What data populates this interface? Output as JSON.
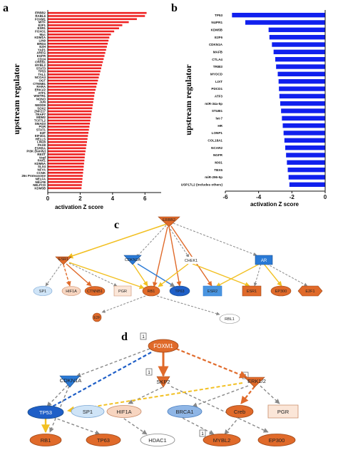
{
  "panels": {
    "a": {
      "label": "a"
    },
    "b": {
      "label": "b"
    },
    "c": {
      "label": "c"
    },
    "d": {
      "label": "d"
    }
  },
  "chart_data": [
    {
      "type": "bar",
      "orientation": "horizontal",
      "color": "#ee2222",
      "ylabel": "upstream regulator",
      "xlabel": "activation Z score",
      "xlim": [
        0,
        7
      ],
      "xticks": [
        0,
        2,
        4,
        6
      ],
      "categories": [
        "ERBB2",
        "RABL6",
        "FOXM1",
        "MITF",
        "E2F1",
        "ESR1",
        "FOXO1",
        "Myc",
        "KDM1A",
        "LIN9",
        "BRD4",
        "EZH",
        "YAP1",
        "AREG",
        "EGFR",
        "CD24",
        "CREB1",
        "MYBL2",
        "STAT3",
        "TP53",
        "TAL1",
        "NCOA3",
        "OGT",
        "CTNNB1",
        "RARA",
        "ERK1/2",
        "ATF1",
        "WWTR1",
        "NONO",
        "JUN",
        "NEDD9",
        "SOX2",
        "ZNF217",
        "TRAP7",
        "MDM2",
        "TCF7L2",
        "SMAD3",
        "PGR",
        "STAT1",
        "E2F",
        "EIF4G1",
        "HELLS",
        "LIN28",
        "PAX8",
        "ESRRA",
        "PI3K (family)",
        "REST",
        "Vegf",
        "PAK1",
        "KDM5A",
        "SLX4",
        "NFYA",
        "CCNK",
        "26s Proteasome",
        "NELFA",
        "NELFB",
        "NELFCD",
        "KDM5B"
      ],
      "values": [
        6.1,
        6.0,
        5.5,
        5.0,
        4.6,
        4.4,
        4.1,
        3.9,
        3.8,
        3.75,
        3.7,
        3.65,
        3.6,
        3.55,
        3.5,
        3.45,
        3.4,
        3.35,
        3.3,
        3.25,
        3.2,
        3.15,
        3.1,
        3.05,
        3.0,
        2.95,
        2.9,
        2.87,
        2.84,
        2.81,
        2.78,
        2.75,
        2.72,
        2.69,
        2.66,
        2.63,
        2.6,
        2.57,
        2.54,
        2.51,
        2.48,
        2.45,
        2.42,
        2.39,
        2.36,
        2.33,
        2.3,
        2.28,
        2.26,
        2.24,
        2.22,
        2.2,
        2.18,
        2.16,
        2.14,
        2.12,
        2.1,
        2.08
      ]
    },
    {
      "type": "bar",
      "orientation": "horizontal",
      "color": "#1020ee",
      "ylabel": "upstream regulator",
      "xlabel": "activation Z score",
      "xlim": [
        -6,
        0
      ],
      "xticks": [
        -6,
        -4,
        -2,
        0
      ],
      "categories": [
        "TP53",
        "NUPR1",
        "KDM5B",
        "E2F6",
        "CDKN1A",
        "MAFB",
        "CTLA4",
        "TRIB3",
        "MYOCD",
        "LIXT",
        "PDCD1",
        "ATF3",
        "miR-34a-5p",
        "STUB1",
        "let-7",
        "HR",
        "LONP1",
        "COL18A1",
        "NCAR2",
        "NGFR",
        "MXI1",
        "TBX5",
        "miR-296-5p",
        "USP17L2 (includes others)"
      ],
      "values": [
        -5.6,
        -4.8,
        -3.4,
        -3.35,
        -3.2,
        -3.1,
        -3.0,
        -2.95,
        -2.85,
        -2.8,
        -2.78,
        -2.75,
        -2.7,
        -2.65,
        -2.6,
        -2.55,
        -2.5,
        -2.45,
        -2.4,
        -2.35,
        -2.3,
        -2.25,
        -2.2,
        -2.15
      ]
    }
  ],
  "networks": {
    "c": {
      "nodes": [
        {
          "id": "ERBB2",
          "label": "ERBB2",
          "color": "#e06a2a",
          "text": "#222222"
        },
        {
          "id": "ESR1",
          "label": "ESR1",
          "color": "#e06a2a",
          "text": "#222222"
        },
        {
          "id": "CDKN1A",
          "label": "CDKN1A",
          "color": "#2a7ad6",
          "text": "#222222"
        },
        {
          "id": "CHEK1",
          "label": "CHEK1",
          "color": "#ffffff",
          "text": "#222222"
        },
        {
          "id": "AR",
          "label": "AR",
          "color": "#2a7ad6",
          "text": "#ffffff"
        },
        {
          "id": "SP1",
          "label": "SP1",
          "color": "#cfe4f7",
          "text": "#222222"
        },
        {
          "id": "HIF1A",
          "label": "HIF1A",
          "color": "#f7d5c0",
          "text": "#222222"
        },
        {
          "id": "CTNNB1",
          "label": "CTNNB1",
          "color": "#e06a2a",
          "text": "#222222"
        },
        {
          "id": "PGR",
          "label": "PGR",
          "color": "#fbe6d8",
          "text": "#222222"
        },
        {
          "id": "RB1",
          "label": "RB1",
          "color": "#e06a2a",
          "text": "#222222"
        },
        {
          "id": "TP63",
          "label": "TP63",
          "color": "#1f5fc7",
          "text": "#222222"
        },
        {
          "id": "ESR2",
          "label": "ESR2",
          "color": "#4a95e0",
          "text": "#222222"
        },
        {
          "id": "ESR1b",
          "label": "ESR1",
          "color": "#e06a2a",
          "text": "#222222"
        },
        {
          "id": "EP300",
          "label": "EP300",
          "color": "#e06a2a",
          "text": "#222222"
        },
        {
          "id": "E2F1",
          "label": "E2F1",
          "color": "#e06a2a",
          "text": "#222222"
        },
        {
          "id": "E2F",
          "label": "E2F",
          "color": "#e06a2a",
          "text": "#222222"
        },
        {
          "id": "RBL1",
          "label": "RBL1",
          "color": "#ffffff",
          "text": "#222222"
        }
      ]
    },
    "d": {
      "nodes": [
        {
          "id": "FOXM1",
          "label": "FOXM1",
          "color": "#e06a2a",
          "text": "#ffffff"
        },
        {
          "id": "CDKN1A",
          "label": "CDKN1A",
          "color": "#2a7ad6",
          "text": "#222222"
        },
        {
          "id": "SKP2",
          "label": "SKP2",
          "color": "#e06a2a",
          "text": "#222222"
        },
        {
          "id": "ERK12",
          "label": "ERK1/2",
          "color": "#e06a2a",
          "text": "#222222"
        },
        {
          "id": "TP53",
          "label": "TP53",
          "color": "#1f5fc7",
          "text": "#ffffff"
        },
        {
          "id": "SP1",
          "label": "SP1",
          "color": "#cfe4f7",
          "text": "#222222"
        },
        {
          "id": "HIF1A",
          "label": "HIF1A",
          "color": "#f7d5c0",
          "text": "#222222"
        },
        {
          "id": "BRCA1",
          "label": "BRCA1",
          "color": "#8fb6e6",
          "text": "#222222"
        },
        {
          "id": "Creb",
          "label": "Creb",
          "color": "#e06a2a",
          "text": "#222222"
        },
        {
          "id": "PGR",
          "label": "PGR",
          "color": "#fbe6d8",
          "text": "#222222"
        },
        {
          "id": "RB1",
          "label": "RB1",
          "color": "#e06a2a",
          "text": "#222222"
        },
        {
          "id": "TP63",
          "label": "TP63",
          "color": "#e06a2a",
          "text": "#222222"
        },
        {
          "id": "HDAC1",
          "label": "HDAC1",
          "color": "#ffffff",
          "text": "#222222"
        },
        {
          "id": "MYBL2",
          "label": "MYBL2",
          "color": "#e06a2a",
          "text": "#222222"
        },
        {
          "id": "EP300",
          "label": "EP300",
          "color": "#e06a2a",
          "text": "#222222"
        }
      ],
      "count_badges": [
        "1",
        "1",
        "1",
        "1"
      ]
    }
  }
}
